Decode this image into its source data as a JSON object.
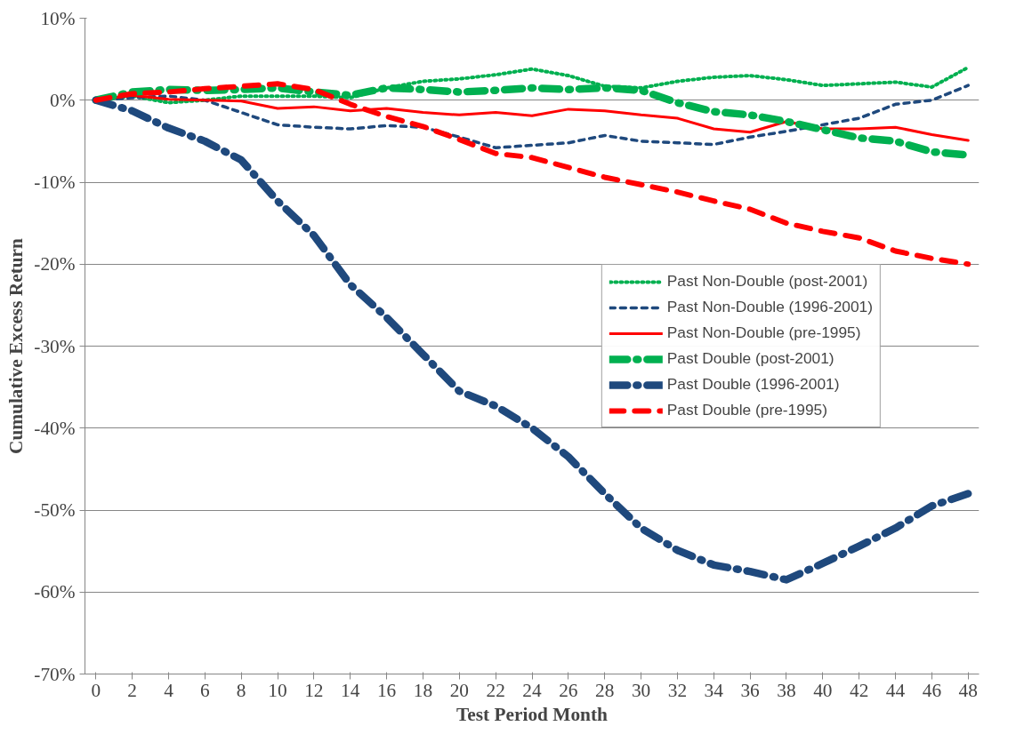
{
  "chart_data": {
    "type": "line",
    "xlabel": "Test Period Month",
    "ylabel": "Cumulative Excess Return",
    "x": [
      0,
      2,
      4,
      6,
      8,
      10,
      12,
      14,
      16,
      18,
      20,
      22,
      24,
      26,
      28,
      30,
      32,
      34,
      36,
      38,
      40,
      42,
      44,
      46,
      48
    ],
    "series": [
      {
        "name": "Past Non-Double (post-2001)",
        "color": "#00b050",
        "line_style": "dotted",
        "values": [
          0,
          0.5,
          -0.3,
          0,
          0.5,
          0.5,
          0.5,
          0.3,
          1.5,
          2.3,
          2.6,
          3.1,
          3.8,
          3.0,
          1.7,
          1.5,
          2.3,
          2.8,
          3.0,
          2.5,
          1.8,
          2.0,
          2.2,
          1.6,
          4.0
        ]
      },
      {
        "name": "Past Non-Double (1996-2001)",
        "color": "#1f497d",
        "line_style": "dashed",
        "values": [
          0,
          0.3,
          0.5,
          0,
          -1.5,
          -3.0,
          -3.3,
          -3.5,
          -3.1,
          -3.3,
          -4.5,
          -5.8,
          -5.5,
          -5.2,
          -4.3,
          -5.0,
          -5.2,
          -5.4,
          -4.5,
          -3.8,
          -3.0,
          -2.2,
          -0.5,
          0,
          1.8
        ]
      },
      {
        "name": "Past Non-Double (pre-1995)",
        "color": "#ff0000",
        "line_style": "solid",
        "values": [
          0,
          0.6,
          0.1,
          0,
          -0.1,
          -1.0,
          -0.8,
          -1.3,
          -1.0,
          -1.5,
          -1.8,
          -1.5,
          -1.9,
          -1.1,
          -1.3,
          -1.8,
          -2.2,
          -3.5,
          -3.9,
          -2.6,
          -3.5,
          -3.5,
          -3.3,
          -4.2,
          -4.9
        ]
      },
      {
        "name": "Past Double (post-2001)",
        "color": "#00b050",
        "line_style": "dashdot",
        "values": [
          0,
          1.0,
          1.3,
          1.2,
          1.3,
          1.5,
          1.0,
          0.6,
          1.5,
          1.3,
          1.0,
          1.2,
          1.5,
          1.3,
          1.5,
          1.2,
          -0.3,
          -1.4,
          -1.8,
          -2.6,
          -3.6,
          -4.6,
          -5.0,
          -6.3,
          -6.7
        ]
      },
      {
        "name": "Past Double (1996-2001)",
        "color": "#1f497d",
        "line_style": "dashdot",
        "values": [
          0,
          -1.3,
          -3.4,
          -5.0,
          -7.3,
          -12.3,
          -16.5,
          -22.5,
          -26.5,
          -31.0,
          -35.5,
          -37.3,
          -40.0,
          -43.5,
          -48.0,
          -52.2,
          -54.9,
          -56.7,
          -57.5,
          -58.5,
          -56.5,
          -54.4,
          -52.2,
          -49.5,
          -48.0
        ]
      },
      {
        "name": "Past Double (pre-1995)",
        "color": "#ff0000",
        "line_style": "dashed",
        "values": [
          0,
          0.8,
          1.0,
          1.4,
          1.7,
          2.0,
          1.3,
          -0.5,
          -2.0,
          -3.2,
          -4.8,
          -6.5,
          -7.0,
          -8.2,
          -9.4,
          -10.3,
          -11.2,
          -12.3,
          -13.3,
          -15.0,
          -16.0,
          -16.8,
          -18.4,
          -19.3,
          -20.0
        ]
      }
    ],
    "xlim": [
      -0.6,
      48.6
    ],
    "xticks": [
      0,
      2,
      4,
      6,
      8,
      10,
      12,
      14,
      16,
      18,
      20,
      22,
      24,
      26,
      28,
      30,
      32,
      34,
      36,
      38,
      40,
      42,
      44,
      46,
      48
    ],
    "ylim": [
      -70,
      10
    ],
    "yticks": [
      {
        "value": 10,
        "label": "10%"
      },
      {
        "value": 0,
        "label": "0%"
      },
      {
        "value": -10,
        "label": "-10%"
      },
      {
        "value": -20,
        "label": "-20%"
      },
      {
        "value": -30,
        "label": "-30%"
      },
      {
        "value": -40,
        "label": "-40%"
      },
      {
        "value": -50,
        "label": "-50%"
      },
      {
        "value": -60,
        "label": "-60%"
      },
      {
        "value": -70,
        "label": "-70%"
      }
    ],
    "grid": "y",
    "legend": "right"
  }
}
